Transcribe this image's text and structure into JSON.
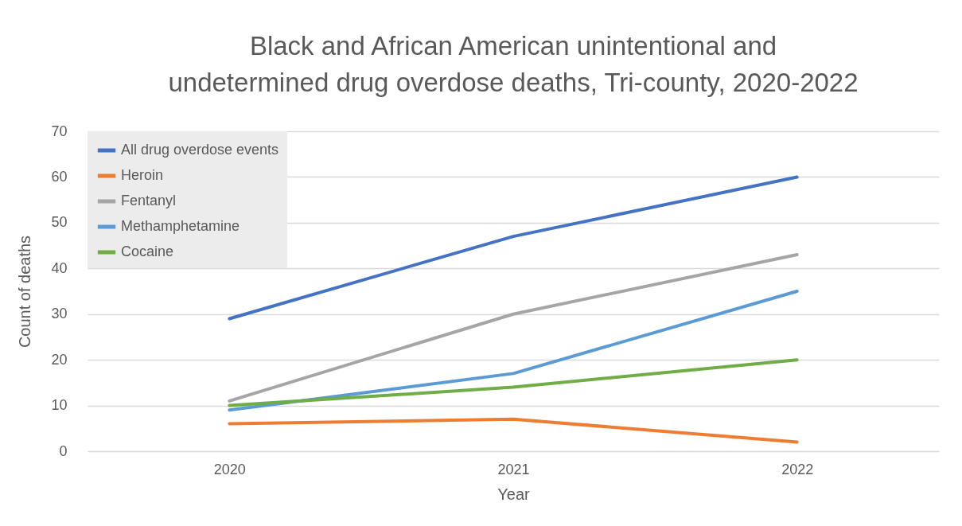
{
  "chart_data": {
    "type": "line",
    "title": [
      "Black and African American unintentional and",
      "undetermined drug overdose deaths, Tri-county, 2020-2022"
    ],
    "xlabel": "Year",
    "ylabel": "Count  of deaths",
    "categories": [
      "2020",
      "2021",
      "2022"
    ],
    "series": [
      {
        "name": "All drug overdose events",
        "color": "#4472c4",
        "values": [
          29,
          47,
          60
        ]
      },
      {
        "name": "Heroin",
        "color": "#ed7d31",
        "values": [
          6,
          7,
          2
        ]
      },
      {
        "name": "Fentanyl",
        "color": "#a5a5a5",
        "values": [
          11,
          30,
          43
        ]
      },
      {
        "name": "Methamphetamine",
        "color": "#5b9bd5",
        "values": [
          9,
          17,
          35
        ]
      },
      {
        "name": "Cocaine",
        "color": "#70ad47",
        "values": [
          10,
          14,
          20
        ]
      }
    ],
    "ylim": [
      0,
      70
    ],
    "yticks": [
      0,
      10,
      20,
      30,
      40,
      50,
      60,
      70
    ],
    "grid": "y",
    "legend": "top left",
    "marker": "none",
    "line_style": "solid"
  }
}
